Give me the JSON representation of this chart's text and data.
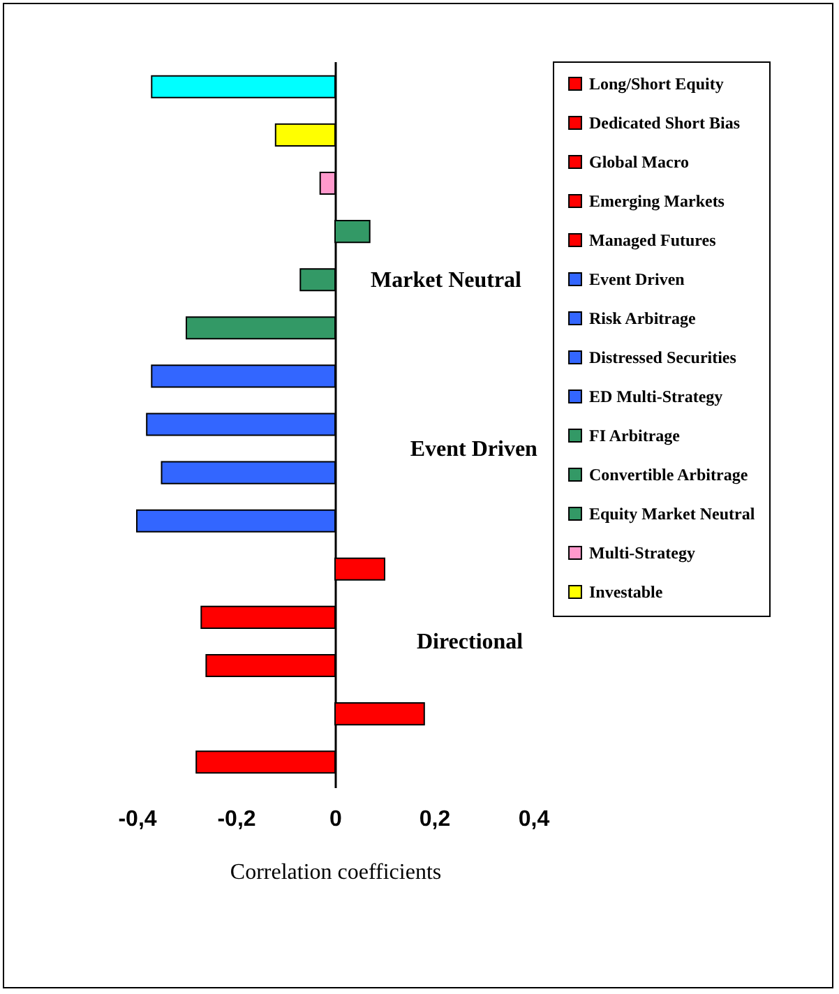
{
  "chart_data": {
    "type": "bar",
    "orientation": "horizontal",
    "xlabel": "Correlation coefficients",
    "categories": [
      null,
      null,
      null,
      null,
      null,
      null,
      null,
      null,
      null,
      null,
      null,
      null,
      null,
      null,
      null
    ],
    "xlim": [
      -0.4,
      0.4
    ],
    "xticks": [
      {
        "value": -0.4,
        "label": "-0,4"
      },
      {
        "value": -0.2,
        "label": "-0,2"
      },
      0,
      {
        "value": 0.2,
        "label": "0,2"
      },
      {
        "value": 0.4,
        "label": "0,4"
      }
    ],
    "legend": "right",
    "annotations": [
      "Market Neutral",
      "Event Driven",
      "Directional"
    ],
    "series": [
      {
        "name": "Long/Short Equity",
        "color": "#ff0000",
        "values": [
          null,
          null,
          null,
          null,
          null,
          null,
          null,
          null,
          null,
          null,
          null,
          null,
          null,
          null,
          -0.28
        ]
      },
      {
        "name": "Dedicated Short Bias",
        "color": "#ff0000",
        "values": [
          null,
          null,
          null,
          null,
          null,
          null,
          null,
          null,
          null,
          null,
          null,
          null,
          null,
          0.18,
          null
        ]
      },
      {
        "name": "Global Macro",
        "color": "#ff0000",
        "values": [
          null,
          null,
          null,
          null,
          null,
          null,
          null,
          null,
          null,
          null,
          null,
          null,
          -0.26,
          null,
          null
        ]
      },
      {
        "name": "Emerging Markets",
        "color": "#ff0000",
        "values": [
          null,
          null,
          null,
          null,
          null,
          null,
          null,
          null,
          null,
          null,
          null,
          -0.27,
          null,
          null,
          null
        ]
      },
      {
        "name": "Managed Futures",
        "color": "#ff0000",
        "values": [
          null,
          null,
          null,
          null,
          null,
          null,
          null,
          null,
          null,
          null,
          0.1,
          null,
          null,
          null,
          null
        ]
      },
      {
        "name": "Event Driven",
        "color": "#3366ff",
        "values": [
          null,
          null,
          null,
          null,
          null,
          null,
          null,
          null,
          null,
          -0.4,
          null,
          null,
          null,
          null,
          null
        ]
      },
      {
        "name": "Risk Arbitrage",
        "color": "#3366ff",
        "values": [
          null,
          null,
          null,
          null,
          null,
          null,
          null,
          null,
          -0.35,
          null,
          null,
          null,
          null,
          null,
          null
        ]
      },
      {
        "name": "Distressed Securities",
        "color": "#3366ff",
        "values": [
          null,
          null,
          null,
          null,
          null,
          null,
          null,
          -0.38,
          null,
          null,
          null,
          null,
          null,
          null,
          null
        ]
      },
      {
        "name": "ED Multi-Strategy",
        "color": "#3366ff",
        "values": [
          null,
          null,
          null,
          null,
          null,
          null,
          -0.37,
          null,
          null,
          null,
          null,
          null,
          null,
          null,
          null
        ]
      },
      {
        "name": "FI Arbitrage",
        "color": "#339966",
        "values": [
          null,
          null,
          null,
          null,
          null,
          -0.3,
          null,
          null,
          null,
          null,
          null,
          null,
          null,
          null,
          null
        ]
      },
      {
        "name": "Convertible Arbitrage",
        "color": "#339966",
        "values": [
          null,
          null,
          null,
          null,
          -0.07,
          null,
          null,
          null,
          null,
          null,
          null,
          null,
          null,
          null,
          null
        ]
      },
      {
        "name": "Equity Market Neutral",
        "color": "#339966",
        "values": [
          null,
          null,
          null,
          0.07,
          null,
          null,
          null,
          null,
          null,
          null,
          null,
          null,
          null,
          null,
          null
        ]
      },
      {
        "name": "Multi-Strategy",
        "color": "#ff99cc",
        "values": [
          null,
          null,
          -0.03,
          null,
          null,
          null,
          null,
          null,
          null,
          null,
          null,
          null,
          null,
          null,
          null
        ]
      },
      {
        "name": "Investable",
        "color": "#ffff00",
        "values": [
          null,
          -0.12,
          null,
          null,
          null,
          null,
          null,
          null,
          null,
          null,
          null,
          null,
          null,
          null,
          null
        ]
      },
      {
        "color": "#00ffff",
        "values": [
          -0.37,
          null,
          null,
          null,
          null,
          null,
          null,
          null,
          null,
          null,
          null,
          null,
          null,
          null,
          null
        ]
      }
    ]
  }
}
